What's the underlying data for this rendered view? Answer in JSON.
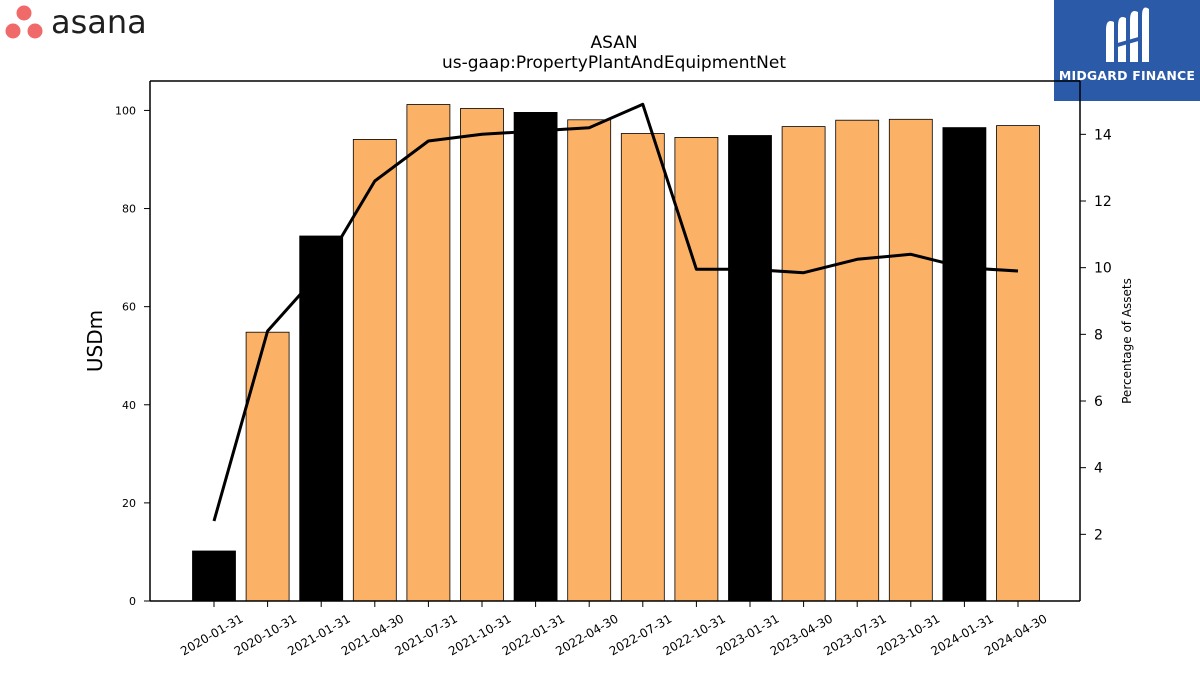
{
  "logos": {
    "left_brand": "asana",
    "right_brand": "MIDGARD FINANCE",
    "left_icon": "asana-three-dots-icon",
    "right_icon": "midgard-m-icon",
    "colors": {
      "asana_dots": "#f06a6a",
      "asana_text": "#1e1f21",
      "midgard_bg": "#2b5aa8"
    }
  },
  "chart_data": {
    "type": "bar",
    "title": "ASAN",
    "subtitle": "us-gaap:PropertyPlantAndEquipmentNet",
    "ylabel": "USDm",
    "y2label": "Percentage of Assets",
    "ylim": [
      0,
      106
    ],
    "y2lim": [
      0,
      15.6
    ],
    "yticks": [
      0,
      20,
      40,
      60,
      80,
      100
    ],
    "y2ticks": [
      2,
      4,
      6,
      8,
      10,
      12,
      14
    ],
    "categories": [
      "2020-01-31",
      "2020-10-31",
      "2021-01-31",
      "2021-04-30",
      "2021-07-31",
      "2021-10-31",
      "2022-01-31",
      "2022-04-30",
      "2022-07-31",
      "2022-10-31",
      "2023-01-31",
      "2023-04-30",
      "2023-07-31",
      "2023-10-31",
      "2024-01-31",
      "2024-04-30"
    ],
    "series": [
      {
        "kind": "bar",
        "values": [
          10.2,
          54.8,
          74.4,
          94.1,
          101.2,
          100.4,
          99.6,
          98.1,
          95.3,
          94.5,
          94.9,
          96.7,
          98.0,
          98.2,
          96.5,
          96.9
        ],
        "highlight": [
          true,
          false,
          true,
          false,
          false,
          false,
          true,
          false,
          false,
          false,
          true,
          false,
          false,
          false,
          true,
          false
        ]
      },
      {
        "kind": "line",
        "axis": "right",
        "values": [
          2.4,
          8.1,
          9.9,
          12.6,
          13.8,
          14.0,
          14.1,
          14.2,
          14.9,
          9.95,
          9.95,
          9.85,
          10.25,
          10.4,
          10.0,
          9.9
        ]
      }
    ],
    "colors": {
      "bar": "#fbb266",
      "highlight_bar": "#000000",
      "line": "#000000"
    },
    "grid": false,
    "legend": "none"
  }
}
